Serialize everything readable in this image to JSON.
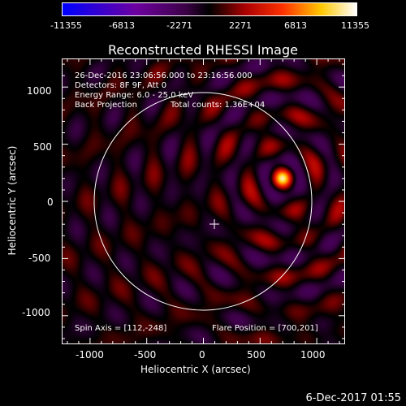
{
  "colorbar": {
    "ticks": [
      "-11355",
      "-6813",
      "-2271",
      "2271",
      "6813",
      "11355"
    ],
    "min": -11355,
    "max": 11355
  },
  "title": "Reconstructed RHESSI Image",
  "info": {
    "time_range": "26-Dec-2016 23:06:56.000 to 23:16:56.000",
    "detectors": "Detectors: 8F 9F, Att 0",
    "energy": "Energy Range: 6.0 - 25.0 keV",
    "method": "Back Projection",
    "counts": "Total counts: 1.36E+04",
    "spin_axis": "Spin Axis = [112,-248]",
    "flare_position": "Flare Position = [700,201]"
  },
  "axes": {
    "xlabel": "Heliocentric X (arcsec)",
    "ylabel": "Heliocentric Y (arcsec)",
    "xticks": [
      "-1000",
      "-500",
      "0",
      "500",
      "1000"
    ],
    "yticks": [
      "1000",
      "500",
      "0",
      "-500",
      "-1000"
    ],
    "xlim": [
      -1250,
      1250
    ],
    "ylim": [
      -1250,
      1250
    ]
  },
  "timestamp": "6-Dec-2017 01:55",
  "colors": {
    "background": "#000000",
    "foreground": "#ffffff"
  }
}
